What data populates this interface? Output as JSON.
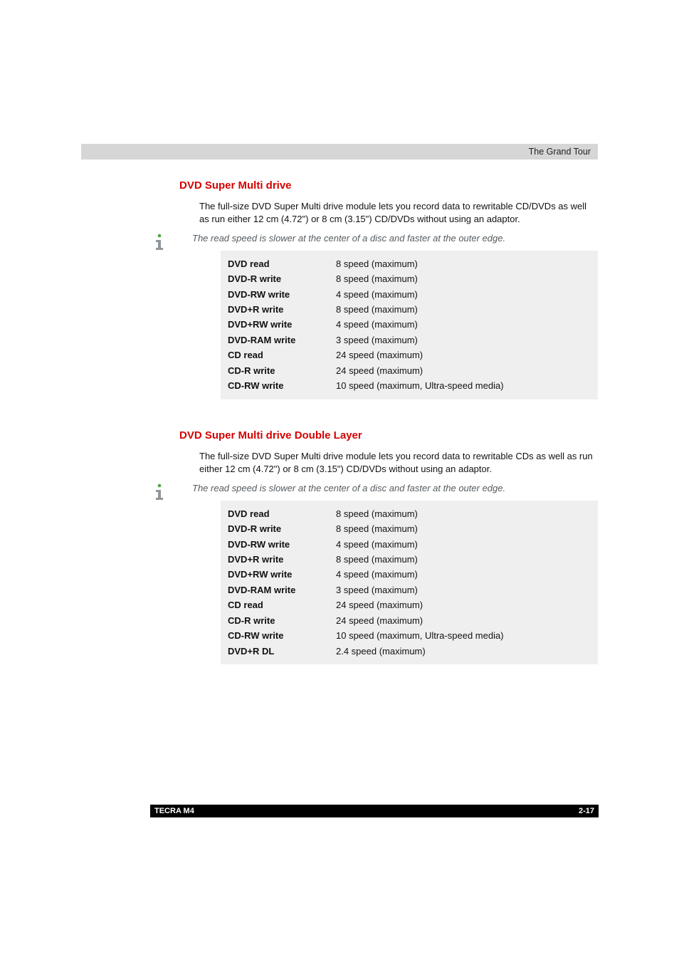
{
  "header": {
    "chapter": "The Grand Tour"
  },
  "colors": {
    "header_bar": "#d6d6d6",
    "section_title": "#d60000",
    "note_text": "#555b60",
    "spec_bg": "#efefef",
    "footer_bg": "#000000",
    "footer_text": "#ffffff",
    "body_text": "#111111",
    "icon_gray": "#8f979c",
    "icon_accent": "#4aa53a"
  },
  "section1": {
    "title": "DVD Super Multi drive",
    "body": "The full-size DVD Super Multi drive module lets you record data to rewritable CD/DVDs as well as run either 12 cm (4.72\") or 8 cm (3.15\") CD/DVDs without using an adaptor.",
    "note": "The read speed is slower at the center of a disc and faster at the outer edge.",
    "specs": [
      {
        "label": "DVD read",
        "value": "8 speed (maximum)"
      },
      {
        "label": "DVD-R write",
        "value": "8 speed (maximum)"
      },
      {
        "label": "DVD-RW write",
        "value": "4 speed (maximum)"
      },
      {
        "label": "DVD+R write",
        "value": "8 speed (maximum)"
      },
      {
        "label": "DVD+RW write",
        "value": "4 speed (maximum)"
      },
      {
        "label": "DVD-RAM write",
        "value": "3 speed (maximum)"
      },
      {
        "label": "CD read",
        "value": "24 speed (maximum)"
      },
      {
        "label": "CD-R write",
        "value": "24 speed (maximum)"
      },
      {
        "label": "CD-RW write",
        "value": "10 speed (maximum, Ultra-speed media)"
      }
    ]
  },
  "section2": {
    "title": "DVD Super Multi drive Double Layer",
    "body": "The full-size DVD Super Multi drive module lets you record data to rewritable CDs as well as run either 12 cm (4.72\") or 8 cm (3.15\") CD/DVDs without using an adaptor.",
    "note": "The read speed is slower at the center of a disc and faster at the outer edge.",
    "specs": [
      {
        "label": "DVD read",
        "value": "8 speed (maximum)"
      },
      {
        "label": "DVD-R write",
        "value": "8 speed (maximum)"
      },
      {
        "label": "DVD-RW write",
        "value": "4 speed (maximum)"
      },
      {
        "label": "DVD+R write",
        "value": "8 speed (maximum)"
      },
      {
        "label": "DVD+RW write",
        "value": "4 speed (maximum)"
      },
      {
        "label": "DVD-RAM write",
        "value": "3 speed (maximum)"
      },
      {
        "label": "CD read",
        "value": "24 speed (maximum)"
      },
      {
        "label": "CD-R write",
        "value": "24 speed (maximum)"
      },
      {
        "label": "CD-RW write",
        "value": "10 speed (maximum, Ultra-speed media)"
      },
      {
        "label": "DVD+R DL",
        "value": "2.4 speed (maximum)"
      }
    ]
  },
  "footer": {
    "model": "TECRA M4",
    "page": "2-17"
  }
}
